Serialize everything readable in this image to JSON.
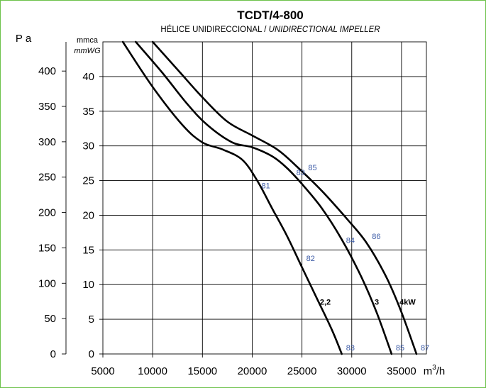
{
  "chart_data": {
    "type": "line",
    "title": "TCDT/4-800",
    "subtitle_regular": "HÉLICE UNIDIRECCIONAL / ",
    "subtitle_italic": "UNIDIRECTIONAL IMPELLER",
    "xlabel_base": "m",
    "xlabel_sup": "3",
    "xlabel_tail": "/h",
    "ylabel_left": "Pa",
    "ylabel_inner_top": "mmca",
    "ylabel_inner_bottom": "mmWG",
    "xlim": [
      5000,
      37500
    ],
    "ylim_mmca": [
      0,
      45
    ],
    "x_ticks": [
      5000,
      10000,
      15000,
      20000,
      25000,
      30000,
      35000
    ],
    "x_tick_labels": [
      "5000",
      "10000",
      "15000",
      "20000",
      "25000",
      "30000",
      "35000"
    ],
    "pa_ticks": [
      0,
      50,
      100,
      150,
      200,
      250,
      300,
      350,
      400
    ],
    "pa_tick_labels": [
      "0",
      "50",
      "100",
      "150",
      "200",
      "250",
      "300",
      "350",
      "400"
    ],
    "mmca_ticks": [
      0,
      5,
      10,
      15,
      20,
      25,
      30,
      35,
      40
    ],
    "mmca_tick_labels": [
      "0",
      "5",
      "10",
      "15",
      "20",
      "25",
      "30",
      "35",
      "40"
    ],
    "grid": true,
    "series": [
      {
        "name": "2,2",
        "points": [
          [
            7000,
            45
          ],
          [
            10000,
            38.5
          ],
          [
            13000,
            33
          ],
          [
            15000,
            30.5
          ],
          [
            17000,
            29.5
          ],
          [
            19000,
            28
          ],
          [
            20500,
            25
          ],
          [
            22000,
            21
          ],
          [
            23500,
            17
          ],
          [
            25000,
            12.5
          ],
          [
            26500,
            8
          ],
          [
            28000,
            3.5
          ],
          [
            29000,
            0
          ]
        ],
        "label_x": 26800,
        "label_y": 7.5,
        "noise": [
          {
            "x": 20500,
            "y": 24.2,
            "label": "81"
          },
          {
            "x": 25000,
            "y": 13.7,
            "label": "82"
          },
          {
            "x": 29000,
            "y": 0.8,
            "label": "83"
          }
        ]
      },
      {
        "name": "3",
        "points": [
          [
            8300,
            45
          ],
          [
            11000,
            40.5
          ],
          [
            13500,
            36
          ],
          [
            15500,
            33
          ],
          [
            18000,
            30.5
          ],
          [
            20000,
            29.8
          ],
          [
            22000,
            28.5
          ],
          [
            23500,
            26.8
          ],
          [
            25000,
            24.5
          ],
          [
            27000,
            21
          ],
          [
            29000,
            16.5
          ],
          [
            31000,
            11
          ],
          [
            32500,
            6
          ],
          [
            34000,
            0
          ]
        ],
        "label_x": 32300,
        "label_y": 7.5,
        "noise": [
          {
            "x": 24000,
            "y": 26.1,
            "label": "83"
          },
          {
            "x": 29000,
            "y": 16.3,
            "label": "84"
          },
          {
            "x": 34000,
            "y": 0.8,
            "label": "85"
          }
        ]
      },
      {
        "name": "4kW",
        "points": [
          [
            10000,
            45
          ],
          [
            12500,
            41
          ],
          [
            15000,
            37
          ],
          [
            17500,
            33.5
          ],
          [
            20000,
            31.5
          ],
          [
            22500,
            29.5
          ],
          [
            24500,
            27
          ],
          [
            27000,
            23.5
          ],
          [
            29500,
            19.5
          ],
          [
            31500,
            16
          ],
          [
            33500,
            11
          ],
          [
            35000,
            6
          ],
          [
            36500,
            0
          ]
        ],
        "label_x": 34800,
        "label_y": 7.5,
        "noise": [
          {
            "x": 25200,
            "y": 26.8,
            "label": "85"
          },
          {
            "x": 31600,
            "y": 16.9,
            "label": "86"
          },
          {
            "x": 36500,
            "y": 0.8,
            "label": "87"
          }
        ]
      }
    ]
  }
}
